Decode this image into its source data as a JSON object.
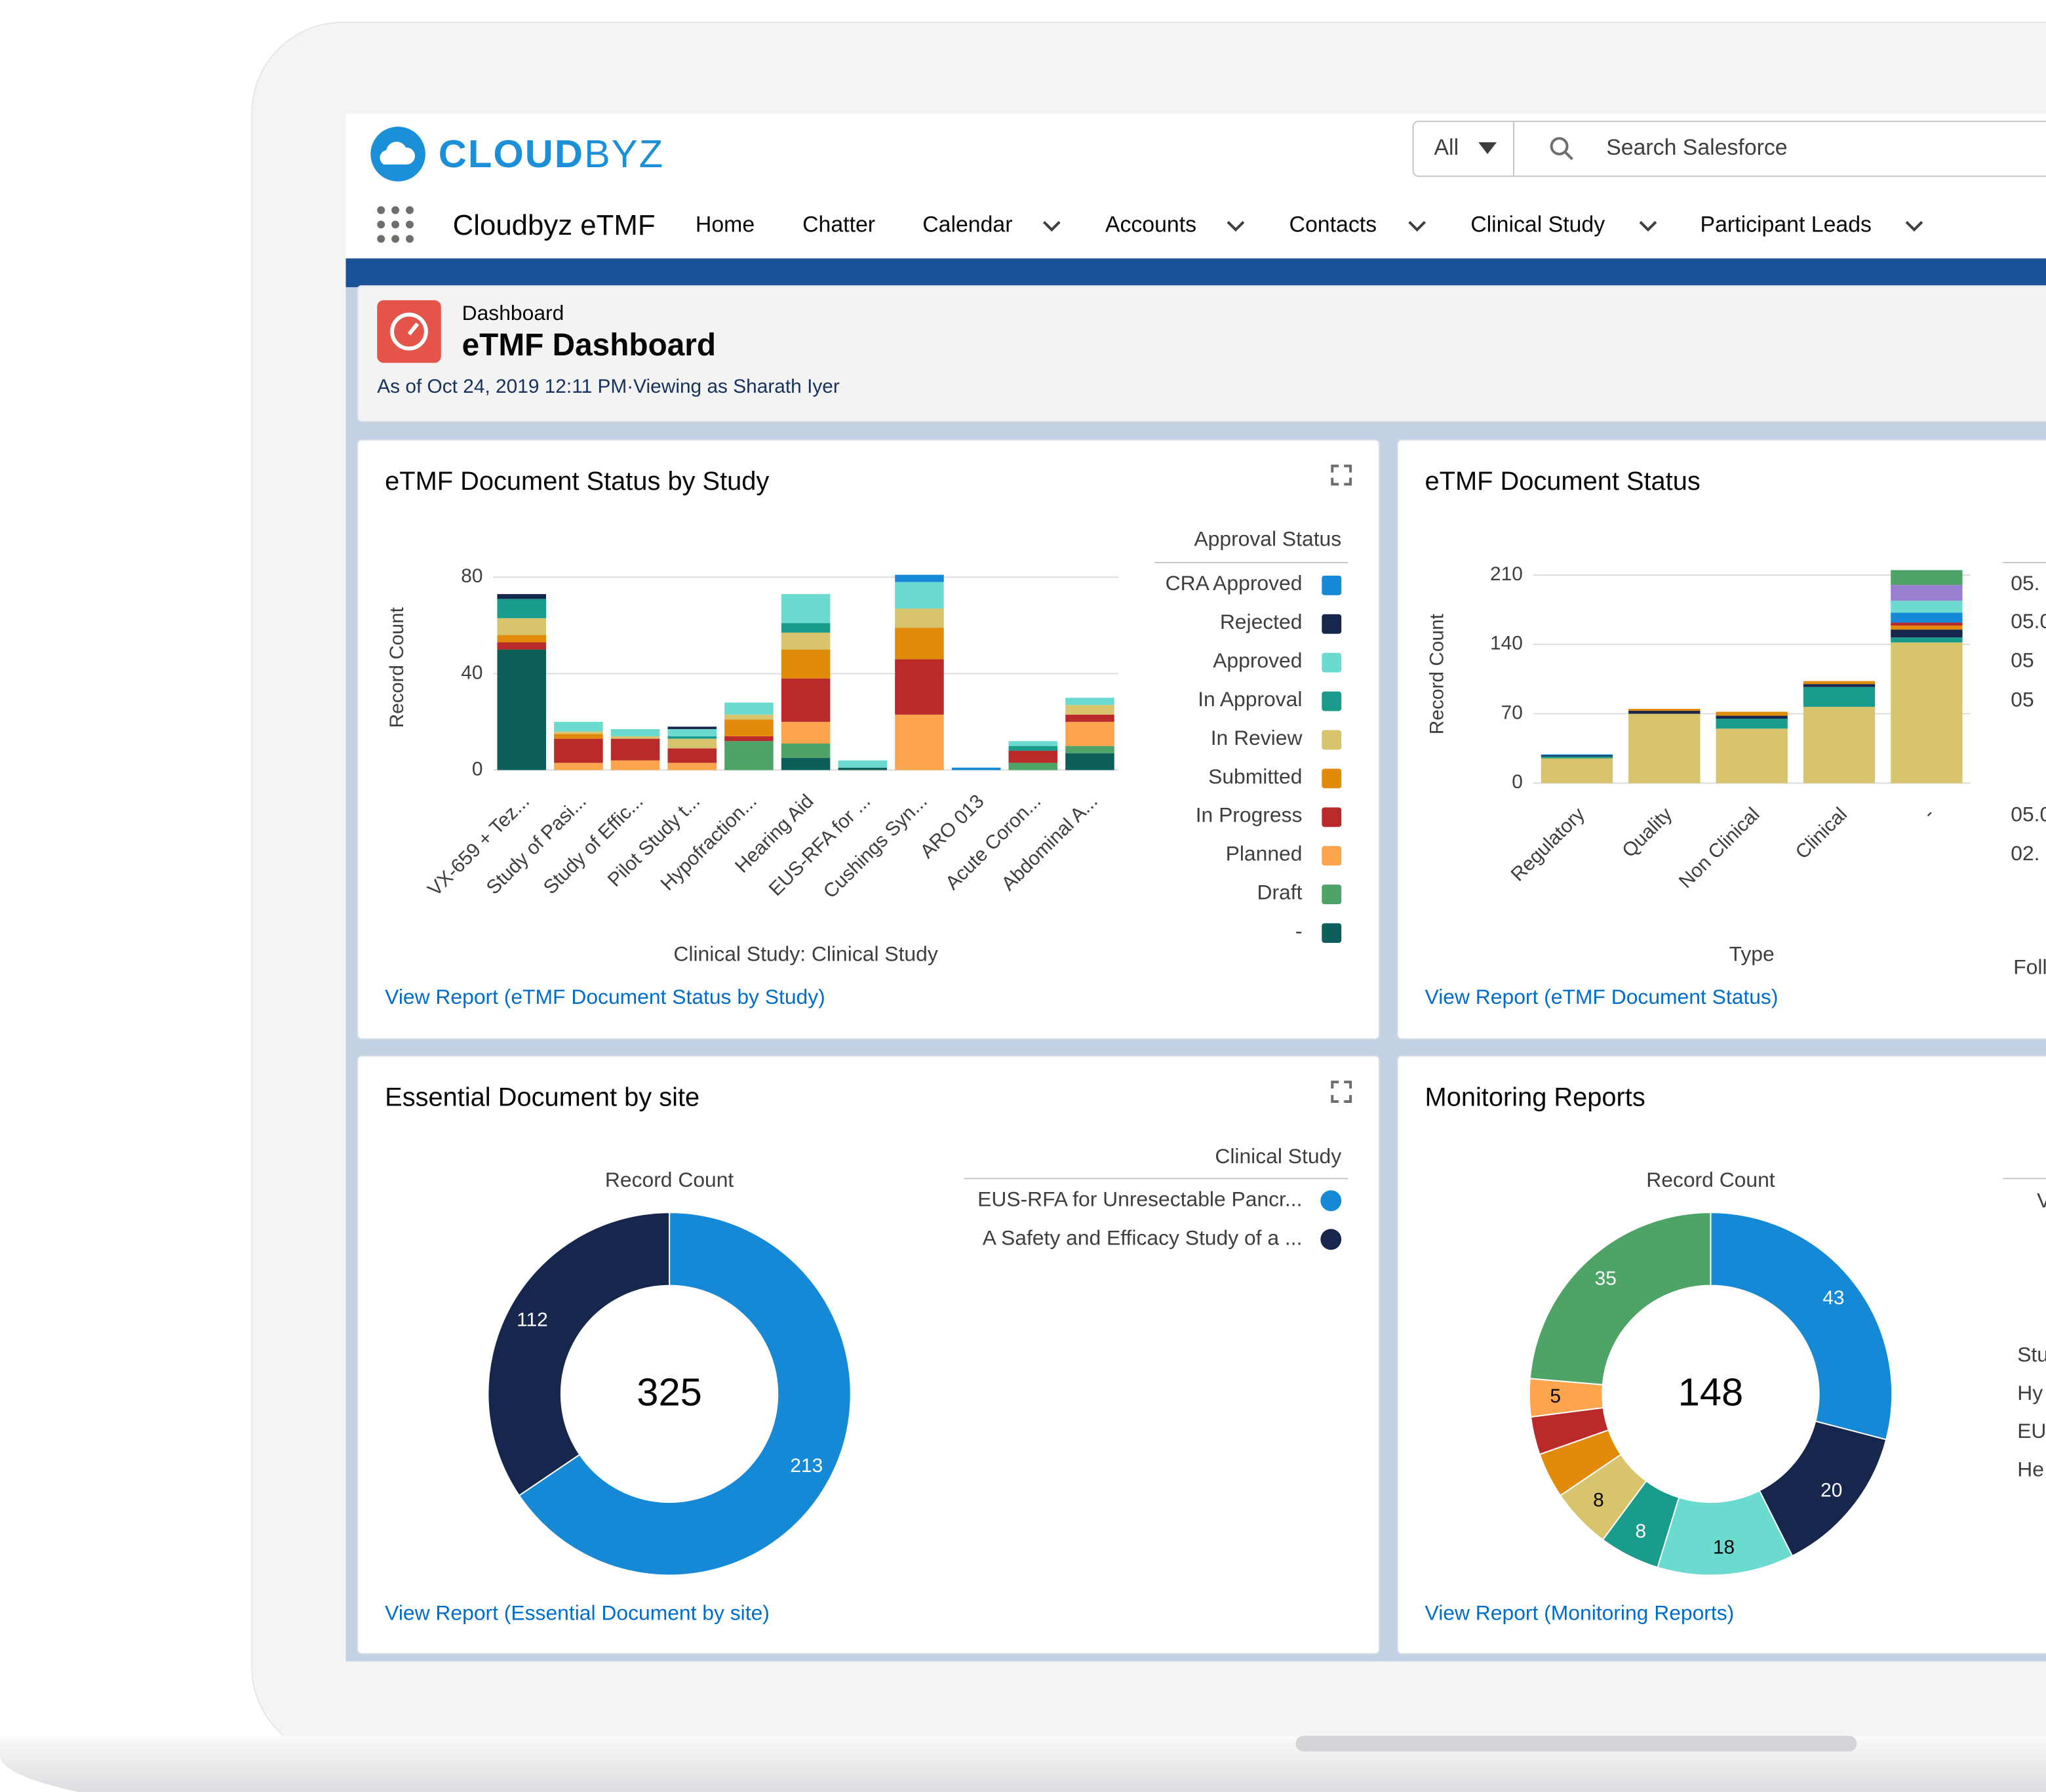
{
  "header": {
    "logo_bold": "CLOUD",
    "logo_light": "BYZ",
    "search_scope": "All",
    "search_placeholder": "Search Salesforce"
  },
  "nav": {
    "app_name": "Cloudbyz eTMF",
    "items": [
      {
        "label": "Home",
        "dropdown": false
      },
      {
        "label": "Chatter",
        "dropdown": false
      },
      {
        "label": "Calendar",
        "dropdown": true
      },
      {
        "label": "Accounts",
        "dropdown": true
      },
      {
        "label": "Contacts",
        "dropdown": true
      },
      {
        "label": "Clinical Study",
        "dropdown": true
      },
      {
        "label": "Participant Leads",
        "dropdown": true
      }
    ]
  },
  "dashboard": {
    "label": "Dashboard",
    "title": "eTMF Dashboard",
    "subtitle": "As of Oct 24, 2019 12:11 PM·Viewing as Sharath Iyer"
  },
  "chart_data": [
    {
      "type": "bar",
      "stacked": true,
      "title": "eTMF Document Status by Study",
      "ylabel": "Record Count",
      "xlabel": "Clinical Study: Clinical Study",
      "legend_title": "Approval Status",
      "link": "View Report (eTMF Document Status by Study)",
      "categories": [
        "VX-659 + Tez...",
        "Study of Pasi...",
        "Study of Effic...",
        "Pilot Study t...",
        "Hypofraction...",
        "Hearing Aid",
        "EUS-RFA for ...",
        "Cushings Syn...",
        "ARO 013",
        "Acute Coron...",
        "Abdominal A..."
      ],
      "series": [
        {
          "name": "CRA Approved",
          "color": "#1589d6",
          "values": [
            0,
            0,
            0,
            0,
            0,
            0,
            0,
            3,
            1,
            0,
            0
          ]
        },
        {
          "name": "Rejected",
          "color": "#16264c",
          "values": [
            2,
            0,
            0,
            1,
            0,
            0,
            0,
            0,
            0,
            0,
            0
          ]
        },
        {
          "name": "Approved",
          "color": "#6bdacf",
          "values": [
            0,
            4,
            3,
            3,
            5,
            12,
            3,
            11,
            0,
            2,
            3
          ]
        },
        {
          "name": "In Approval",
          "color": "#1a9c8c",
          "values": [
            8,
            0,
            0,
            1,
            0,
            4,
            0,
            0,
            0,
            2,
            0
          ]
        },
        {
          "name": "In Review",
          "color": "#d7c46c",
          "values": [
            7,
            1,
            1,
            4,
            2,
            7,
            0,
            8,
            0,
            0,
            4
          ]
        },
        {
          "name": "Submitted",
          "color": "#e28b0b",
          "values": [
            3,
            2,
            0,
            0,
            7,
            12,
            0,
            13,
            0,
            0,
            0
          ]
        },
        {
          "name": "In Progress",
          "color": "#bb2a2a",
          "values": [
            3,
            10,
            9,
            6,
            2,
            18,
            0,
            23,
            0,
            5,
            3
          ]
        },
        {
          "name": "Planned",
          "color": "#fda54c",
          "values": [
            0,
            3,
            4,
            3,
            0,
            9,
            0,
            23,
            0,
            0,
            10
          ]
        },
        {
          "name": "Draft",
          "color": "#4ea366",
          "values": [
            0,
            0,
            0,
            0,
            12,
            6,
            0,
            0,
            0,
            3,
            3
          ]
        },
        {
          "name": "-",
          "color": "#0c5e5a",
          "values": [
            50,
            0,
            0,
            0,
            0,
            5,
            1,
            0,
            0,
            0,
            7
          ]
        }
      ],
      "ylim": [
        0,
        85
      ],
      "yticks": [
        0,
        40,
        80
      ],
      "grid": true
    },
    {
      "type": "bar",
      "stacked": true,
      "title": "eTMF Document Status",
      "ylabel": "Record Count",
      "xlabel": "Type",
      "legend_title": "Foll",
      "legend_labels": [
        "05.",
        "05.0",
        "05",
        "05",
        "05.0",
        "02."
      ],
      "link": "View Report (eTMF Document Status)",
      "categories": [
        "Regulatory",
        "Quality",
        "Non Clinical",
        "Clinical",
        "-"
      ],
      "series": [
        {
          "color": "#4ea366",
          "values": [
            0,
            0,
            0,
            0,
            15
          ]
        },
        {
          "color": "#9a7fd1",
          "values": [
            0,
            0,
            0,
            0,
            16
          ]
        },
        {
          "color": "#6bdacf",
          "values": [
            0,
            0,
            0,
            0,
            12
          ]
        },
        {
          "color": "#1589d6",
          "values": [
            1,
            0,
            0,
            0,
            10
          ]
        },
        {
          "color": "#bb2a2a",
          "values": [
            0,
            0,
            0,
            0,
            3
          ]
        },
        {
          "color": "#e28b0b",
          "values": [
            0,
            2,
            4,
            3,
            4
          ]
        },
        {
          "color": "#16264c",
          "values": [
            1,
            3,
            3,
            3,
            8
          ]
        },
        {
          "color": "#1a9c8c",
          "values": [
            2,
            0,
            10,
            20,
            5
          ]
        },
        {
          "color": "#d7c46c",
          "values": [
            25,
            70,
            55,
            77,
            142
          ]
        }
      ],
      "ylim": [
        0,
        220
      ],
      "yticks": [
        0,
        70,
        140,
        210
      ],
      "grid": true
    },
    {
      "type": "donut",
      "title": "Essential Document by site",
      "label": "Record Count",
      "total": 325,
      "legend_title": "Clinical Study",
      "link": "View Report (Essential Document by site)",
      "categories": [
        "EUS-RFA for Unresectable Pancr...",
        "A Safety and Efficacy Study of a ..."
      ],
      "values": [
        213,
        112
      ],
      "colors": [
        "#1589d6",
        "#16264c"
      ]
    },
    {
      "type": "donut",
      "title": "Monitoring Reports",
      "label": "Record Count",
      "total": 148,
      "legend_title": "V",
      "legend_labels": [
        "Stu",
        "Hy",
        "EU",
        "He"
      ],
      "link": "View Report (Monitoring Reports)",
      "values": [
        43,
        20,
        18,
        8,
        8,
        6,
        5,
        5,
        35
      ],
      "value_labels": [
        "43",
        "20",
        "18",
        "8",
        "8",
        null,
        null,
        "5",
        "35"
      ],
      "colors": [
        "#1589d6",
        "#16264c",
        "#6bdacf",
        "#1a9c8c",
        "#d7c46c",
        "#e28b0b",
        "#bb2a2a",
        "#fda54c",
        "#4ea366"
      ]
    }
  ]
}
